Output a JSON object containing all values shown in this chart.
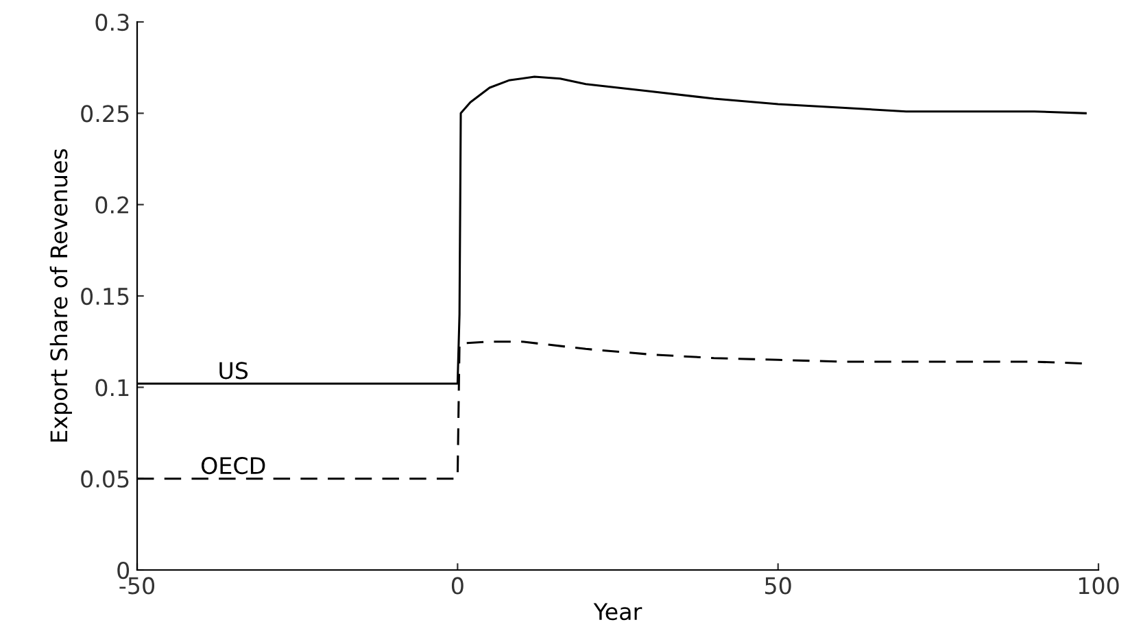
{
  "chart_data": {
    "type": "line",
    "xlabel": "Year",
    "ylabel": "Export Share of Revenues",
    "xlim": [
      -50,
      100
    ],
    "xticks": [
      -50,
      0,
      50,
      100
    ],
    "ylim": [
      0,
      0.3
    ],
    "yticks": [
      0,
      0.05,
      0.1,
      0.15,
      0.2,
      0.25,
      0.3
    ],
    "grid": false,
    "legend": false,
    "series": [
      {
        "name": "US",
        "color": "#000000",
        "line_style": "solid",
        "x": [
          -50,
          0,
          0.3,
          0.5,
          2,
          5,
          8,
          12,
          16,
          20,
          30,
          40,
          50,
          60,
          70,
          80,
          90,
          98
        ],
        "values": [
          0.102,
          0.102,
          0.14,
          0.25,
          0.256,
          0.264,
          0.268,
          0.27,
          0.269,
          0.266,
          0.262,
          0.258,
          0.255,
          0.253,
          0.251,
          0.251,
          0.251,
          0.25
        ]
      },
      {
        "name": "OECD",
        "color": "#000000",
        "line_style": "dashed",
        "x": [
          -50,
          0,
          0.3,
          5,
          10,
          20,
          30,
          40,
          50,
          60,
          70,
          80,
          90,
          98
        ],
        "values": [
          0.05,
          0.05,
          0.124,
          0.125,
          0.125,
          0.121,
          0.118,
          0.116,
          0.115,
          0.114,
          0.114,
          0.114,
          0.114,
          0.113
        ]
      }
    ]
  }
}
